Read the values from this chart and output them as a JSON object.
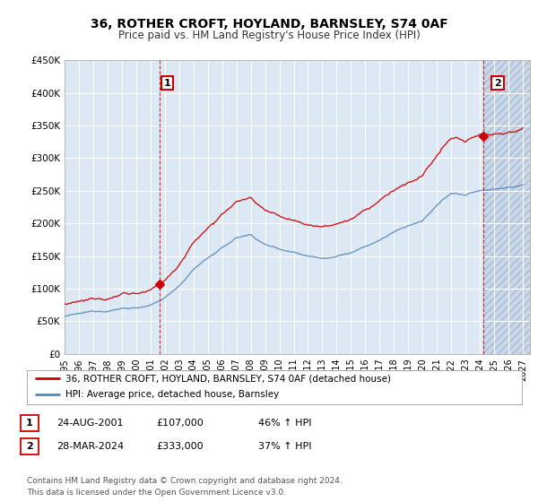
{
  "title": "36, ROTHER CROFT, HOYLAND, BARNSLEY, S74 0AF",
  "subtitle": "Price paid vs. HM Land Registry's House Price Index (HPI)",
  "ylim": [
    0,
    450000
  ],
  "yticks": [
    0,
    50000,
    100000,
    150000,
    200000,
    250000,
    300000,
    350000,
    400000,
    450000
  ],
  "ytick_labels": [
    "£0",
    "£50K",
    "£100K",
    "£150K",
    "£200K",
    "£250K",
    "£300K",
    "£350K",
    "£400K",
    "£450K"
  ],
  "background_color": "#ffffff",
  "plot_bg_color": "#dce9f5",
  "grid_color": "#ffffff",
  "hatch_color": "#c0cfe0",
  "red_line_color": "#cc0000",
  "blue_line_color": "#5588bb",
  "vline_color": "#cc0000",
  "annotation1": {
    "label": "1",
    "date_idx": 2001.65,
    "price": 107000,
    "date_str": "24-AUG-2001",
    "price_str": "£107,000",
    "change": "46% ↑ HPI"
  },
  "annotation2": {
    "label": "2",
    "date_idx": 2024.24,
    "price": 333000,
    "date_str": "28-MAR-2024",
    "price_str": "£333,000",
    "change": "37% ↑ HPI"
  },
  "legend_line1": "36, ROTHER CROFT, HOYLAND, BARNSLEY, S74 0AF (detached house)",
  "legend_line2": "HPI: Average price, detached house, Barnsley",
  "footer": "Contains HM Land Registry data © Crown copyright and database right 2024.\nThis data is licensed under the Open Government Licence v3.0.",
  "xmin": 1995.0,
  "xmax": 2027.5,
  "hatch_start": 2024.24,
  "xticks": [
    1995,
    1996,
    1997,
    1998,
    1999,
    2000,
    2001,
    2002,
    2003,
    2004,
    2005,
    2006,
    2007,
    2008,
    2009,
    2010,
    2011,
    2012,
    2013,
    2014,
    2015,
    2016,
    2017,
    2018,
    2019,
    2020,
    2021,
    2022,
    2023,
    2024,
    2025,
    2026,
    2027
  ]
}
